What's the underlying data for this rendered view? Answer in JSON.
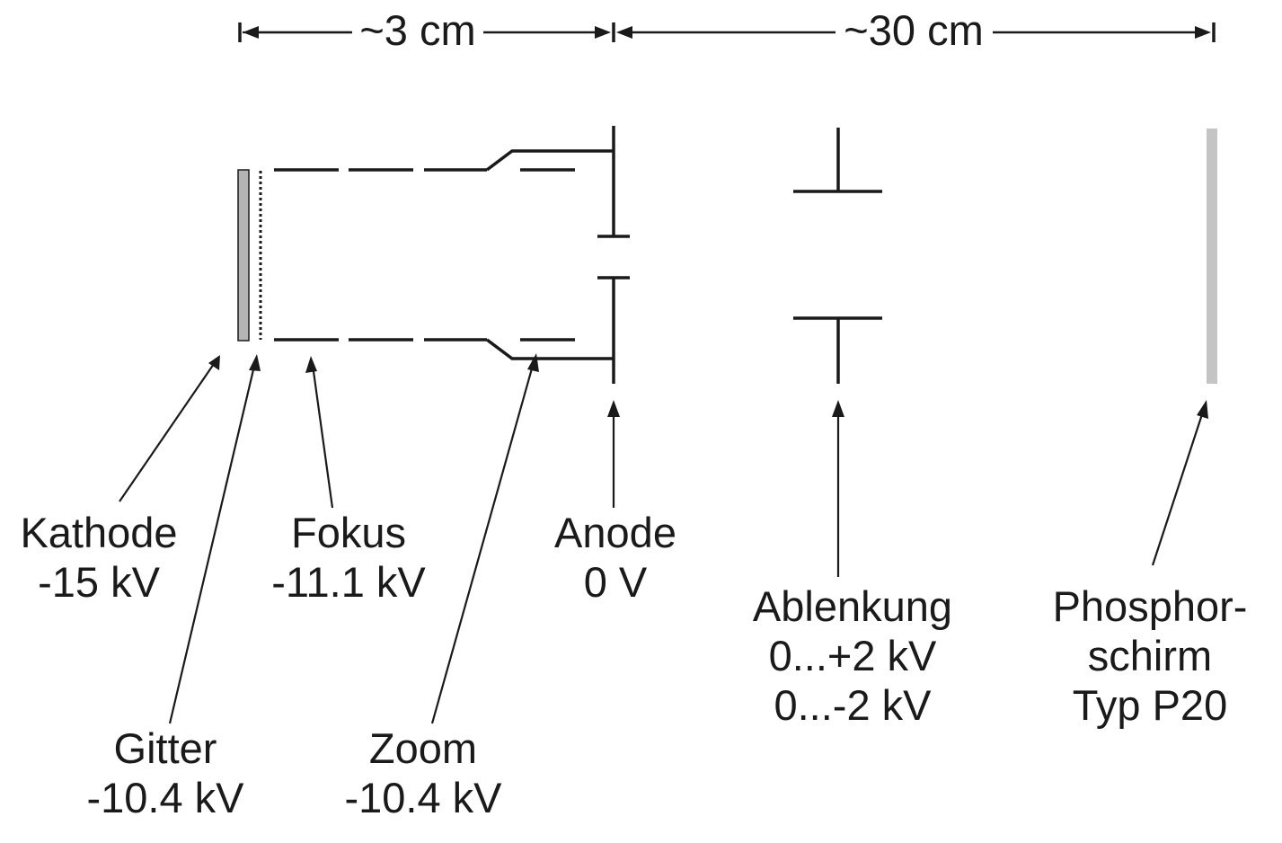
{
  "dimensions": {
    "left": "~3 cm",
    "right": "~30 cm"
  },
  "labels": {
    "kathode": [
      "Kathode",
      "-15 kV"
    ],
    "gitter": [
      "Gitter",
      "-10.4 kV"
    ],
    "fokus": [
      "Fokus",
      "-11.1 kV"
    ],
    "zoom": [
      "Zoom",
      "-10.4 kV"
    ],
    "anode": [
      "Anode",
      "0 V"
    ],
    "ablenkung": [
      "Ablenkung",
      "0...+2 kV",
      "0...-2 kV"
    ],
    "phosphor": [
      "Phosphor-",
      "schirm",
      "Typ P20"
    ]
  },
  "colors": {
    "line": "#1a1a1a",
    "cathode_fill": "#b4b4b4",
    "screen_fill": "#c4c4c4"
  }
}
